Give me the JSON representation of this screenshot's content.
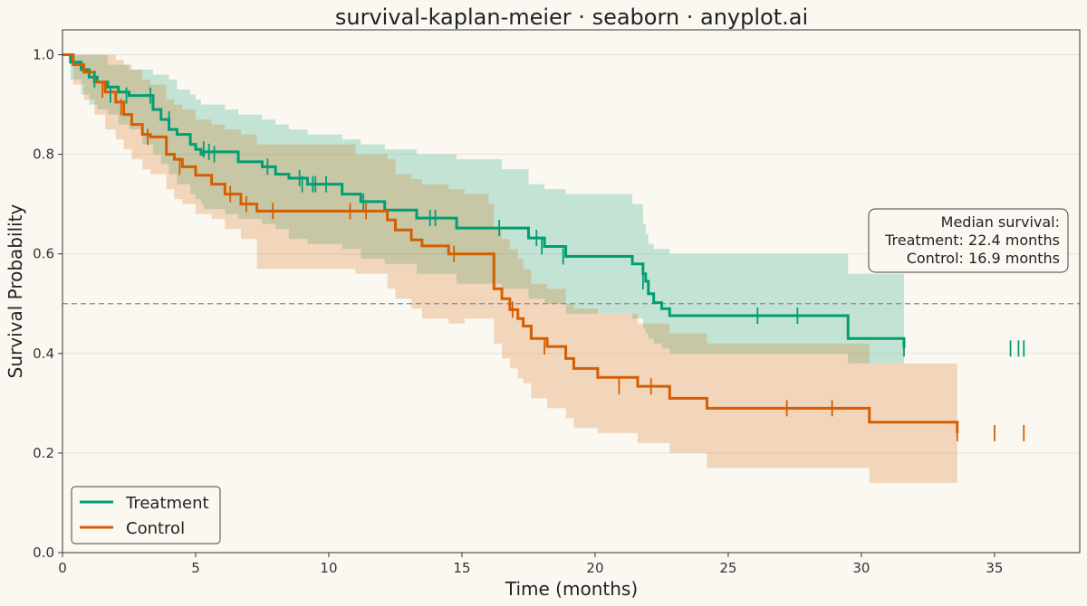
{
  "chart_data": {
    "type": "line",
    "title": "survival-kaplan-meier · seaborn · anyplot.ai",
    "xlabel": "Time (months)",
    "ylabel": "Survival Probability",
    "xlim": [
      0,
      38.2
    ],
    "ylim": [
      0,
      1.05
    ],
    "xticks": [
      0,
      5,
      10,
      15,
      20,
      25,
      30,
      35
    ],
    "yticks": [
      0.0,
      0.2,
      0.4,
      0.6,
      0.8,
      1.0
    ],
    "xtick_labels": [
      "0",
      "5",
      "10",
      "15",
      "20",
      "25",
      "30",
      "35"
    ],
    "ytick_labels": [
      "0.0",
      "0.2",
      "0.4",
      "0.6",
      "0.8",
      "1.0"
    ],
    "grid": "horizontal",
    "legend_position": "lower-left",
    "reference_line": {
      "y": 0.5,
      "style": "dashed"
    },
    "annotation": {
      "lines": [
        "Median survival:",
        "Treatment: 22.4 months",
        "Control: 16.9 months"
      ],
      "position": "right"
    },
    "series": [
      {
        "name": "Treatment",
        "color": "#009E73",
        "times": [
          0,
          0.3,
          0.7,
          1.0,
          1.3,
          1.7,
          2.1,
          2.5,
          3.0,
          3.4,
          3.7,
          4.0,
          4.3,
          4.8,
          5.0,
          5.2,
          5.3,
          6.1,
          6.6,
          7.5,
          8.0,
          8.5,
          9.2,
          10.5,
          11.2,
          12.1,
          13.3,
          14.8,
          16.5,
          17.5,
          18.1,
          18.9,
          21.4,
          21.8,
          21.9,
          22.0,
          22.2,
          22.5,
          22.8,
          29.5,
          31.6
        ],
        "survival": [
          1.0,
          0.985,
          0.97,
          0.955,
          0.945,
          0.935,
          0.925,
          0.918,
          0.918,
          0.89,
          0.87,
          0.85,
          0.84,
          0.82,
          0.81,
          0.8,
          0.805,
          0.805,
          0.785,
          0.775,
          0.76,
          0.752,
          0.74,
          0.72,
          0.705,
          0.688,
          0.672,
          0.652,
          0.652,
          0.632,
          0.615,
          0.595,
          0.58,
          0.56,
          0.545,
          0.52,
          0.502,
          0.49,
          0.476,
          0.43,
          0.41
        ],
        "ci_lower": [
          1.0,
          0.95,
          0.92,
          0.9,
          0.89,
          0.88,
          0.86,
          0.85,
          0.82,
          0.8,
          0.78,
          0.76,
          0.74,
          0.72,
          0.71,
          0.7,
          0.69,
          0.68,
          0.67,
          0.66,
          0.65,
          0.63,
          0.62,
          0.61,
          0.59,
          0.58,
          0.56,
          0.54,
          0.53,
          0.51,
          0.5,
          0.48,
          0.47,
          0.45,
          0.44,
          0.43,
          0.42,
          0.41,
          0.4,
          0.38,
          0.38
        ],
        "ci_upper": [
          1.0,
          1.0,
          1.0,
          1.0,
          1.0,
          0.98,
          0.98,
          0.97,
          0.97,
          0.96,
          0.96,
          0.95,
          0.93,
          0.92,
          0.91,
          0.9,
          0.9,
          0.89,
          0.88,
          0.87,
          0.86,
          0.85,
          0.84,
          0.83,
          0.82,
          0.81,
          0.8,
          0.79,
          0.77,
          0.74,
          0.73,
          0.72,
          0.7,
          0.66,
          0.64,
          0.62,
          0.61,
          0.61,
          0.6,
          0.56,
          0.56
        ],
        "censored_times": [
          1.2,
          1.8,
          2.4,
          3.3,
          4.0,
          5.3,
          5.5,
          5.7,
          7.7,
          8.9,
          9.0,
          9.4,
          9.5,
          9.9,
          11.3,
          13.8,
          14.0,
          16.4,
          17.8,
          18.0,
          18.8,
          21.8,
          26.1,
          27.6,
          31.6,
          35.6,
          35.9,
          36.1
        ],
        "censored_survival": [
          0.95,
          0.92,
          0.918,
          0.918,
          0.87,
          0.81,
          0.805,
          0.8,
          0.775,
          0.752,
          0.74,
          0.74,
          0.74,
          0.74,
          0.705,
          0.672,
          0.672,
          0.652,
          0.632,
          0.615,
          0.595,
          0.545,
          0.476,
          0.476,
          0.41,
          0.41,
          0.41,
          0.41
        ]
      },
      {
        "name": "Control",
        "color": "#D55E00",
        "times": [
          0,
          0.4,
          0.8,
          1.2,
          1.6,
          2.0,
          2.3,
          2.6,
          3.0,
          3.3,
          3.9,
          4.2,
          4.5,
          5.0,
          5.6,
          6.1,
          6.7,
          7.3,
          9.2,
          11.0,
          12.2,
          12.5,
          13.1,
          13.5,
          14.5,
          15.1,
          16.0,
          16.2,
          16.5,
          16.8,
          17.1,
          17.3,
          17.6,
          18.2,
          18.9,
          19.2,
          20.1,
          21.6,
          22.8,
          24.2,
          30.3,
          33.6
        ],
        "survival": [
          1.0,
          0.98,
          0.965,
          0.945,
          0.925,
          0.905,
          0.88,
          0.86,
          0.84,
          0.835,
          0.8,
          0.79,
          0.775,
          0.758,
          0.74,
          0.72,
          0.7,
          0.686,
          0.686,
          0.686,
          0.668,
          0.648,
          0.628,
          0.616,
          0.6,
          0.6,
          0.6,
          0.53,
          0.51,
          0.488,
          0.47,
          0.455,
          0.43,
          0.414,
          0.39,
          0.37,
          0.352,
          0.334,
          0.31,
          0.29,
          0.262,
          0.24
        ],
        "ci_lower": [
          1.0,
          0.94,
          0.91,
          0.88,
          0.85,
          0.83,
          0.81,
          0.79,
          0.77,
          0.76,
          0.73,
          0.71,
          0.7,
          0.68,
          0.67,
          0.65,
          0.63,
          0.57,
          0.57,
          0.56,
          0.53,
          0.51,
          0.49,
          0.47,
          0.46,
          0.47,
          0.47,
          0.42,
          0.39,
          0.37,
          0.35,
          0.34,
          0.31,
          0.29,
          0.27,
          0.25,
          0.24,
          0.22,
          0.2,
          0.17,
          0.14,
          0.14
        ],
        "ci_upper": [
          1.0,
          1.0,
          1.0,
          1.0,
          1.0,
          0.99,
          0.98,
          0.97,
          0.95,
          0.94,
          0.91,
          0.9,
          0.89,
          0.87,
          0.86,
          0.85,
          0.84,
          0.82,
          0.82,
          0.8,
          0.79,
          0.76,
          0.75,
          0.74,
          0.73,
          0.72,
          0.7,
          0.65,
          0.63,
          0.61,
          0.59,
          0.57,
          0.54,
          0.53,
          0.5,
          0.49,
          0.48,
          0.46,
          0.44,
          0.42,
          0.38,
          0.38
        ],
        "censored_times": [
          1.5,
          2.2,
          3.2,
          4.4,
          6.3,
          6.9,
          7.9,
          10.8,
          11.4,
          14.7,
          16.9,
          18.1,
          20.9,
          22.1,
          27.2,
          28.9,
          33.6,
          35.0,
          36.1
        ],
        "censored_survival": [
          0.93,
          0.895,
          0.835,
          0.775,
          0.72,
          0.7,
          0.686,
          0.686,
          0.686,
          0.6,
          0.488,
          0.414,
          0.334,
          0.334,
          0.29,
          0.29,
          0.24,
          0.24,
          0.24
        ]
      }
    ]
  }
}
